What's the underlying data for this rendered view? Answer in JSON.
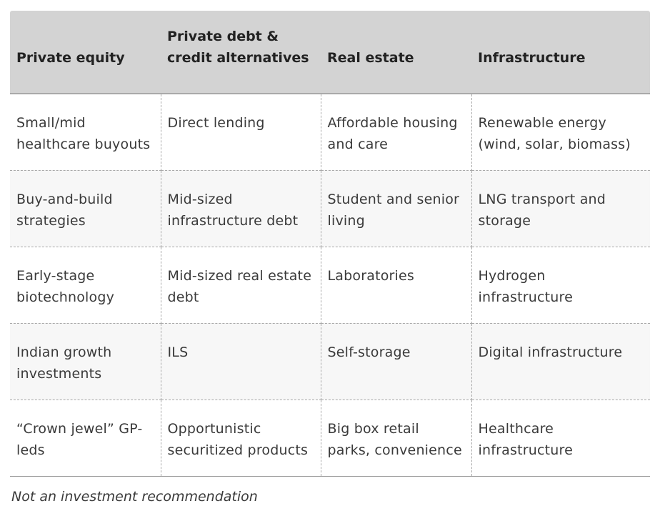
{
  "table": {
    "headers": [
      "Private equity",
      "Private debt & credit alternatives",
      "Real estate",
      "Infrastructure"
    ],
    "rows": [
      [
        "Small/mid healthcare buyouts",
        "Direct lending",
        "Affordable housing and care",
        "Renewable energy (wind, solar, biomass)"
      ],
      [
        "Buy-and-build strategies",
        "Mid-sized infrastructure debt",
        "Student and senior living",
        "LNG transport and storage"
      ],
      [
        "Early-stage biotechnology",
        "Mid-sized real estate debt",
        "Laboratories",
        "Hydrogen infrastructure"
      ],
      [
        "Indian growth investments",
        "ILS",
        "Self-storage",
        "Digital infrastructure"
      ],
      [
        "“Crown jewel” GP-leds",
        "Opportunistic securitized products",
        "Big box retail parks, convenience",
        "Healthcare infrastructure"
      ]
    ]
  },
  "footnote": "Not an investment recommendation"
}
